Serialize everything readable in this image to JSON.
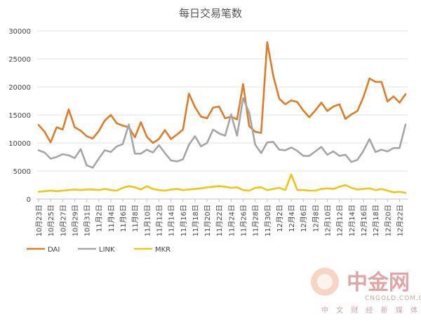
{
  "chart_data": {
    "type": "line",
    "title": "每日交易笔数",
    "xlabel": "",
    "ylabel": "",
    "ylim": [
      0,
      30000
    ],
    "y_ticks": [
      "0",
      "5000",
      "10000",
      "15000",
      "20000",
      "25000",
      "30000"
    ],
    "x_tick_labels": [
      "10月23日",
      "10月25日",
      "10月27日",
      "10月29日",
      "10月31日",
      "11月2日",
      "11月4日",
      "11月6日",
      "11月8日",
      "11月10日",
      "11月12日",
      "11月14日",
      "11月16日",
      "11月18日",
      "11月20日",
      "11月22日",
      "11月24日",
      "11月26日",
      "11月28日",
      "11月30日",
      "12月2日",
      "12月4日",
      "12月6日",
      "12月8日",
      "12月10日",
      "12月12日",
      "12月14日",
      "12月16日",
      "12月18日",
      "12月20日",
      "12月22日"
    ],
    "x": [
      "10月23日",
      "10月24日",
      "10月25日",
      "10月26日",
      "10月27日",
      "10月28日",
      "10月29日",
      "10月30日",
      "10月31日",
      "11月1日",
      "11月2日",
      "11月3日",
      "11月4日",
      "11月5日",
      "11月6日",
      "11月7日",
      "11月8日",
      "11月9日",
      "11月10日",
      "11月11日",
      "11月12日",
      "11月13日",
      "11月14日",
      "11月15日",
      "11月16日",
      "11月17日",
      "11月18日",
      "11月19日",
      "11月20日",
      "11月21日",
      "11月22日",
      "11月23日",
      "11月24日",
      "11月25日",
      "11月26日",
      "11月27日",
      "11月28日",
      "11月29日",
      "11月30日",
      "12月1日",
      "12月2日",
      "12月3日",
      "12月4日",
      "12月5日",
      "12月6日",
      "12月7日",
      "12月8日",
      "12月9日",
      "12月10日",
      "12月11日",
      "12月12日",
      "12月13日",
      "12月14日",
      "12月15日",
      "12月16日",
      "12月17日",
      "12月18日",
      "12月19日",
      "12月20日",
      "12月21日",
      "12月22日",
      "12月23日"
    ],
    "legend_position": "bottom-left",
    "grid": true,
    "series": [
      {
        "name": "DAI",
        "color": "#e07b28",
        "values": [
          13200,
          12000,
          10100,
          12800,
          12400,
          16000,
          12800,
          12200,
          11200,
          10800,
          12100,
          14000,
          15000,
          13500,
          13100,
          12800,
          11000,
          13700,
          11100,
          10000,
          10700,
          12300,
          10700,
          11500,
          12400,
          18800,
          16400,
          14700,
          14400,
          16300,
          16500,
          14400,
          14700,
          14200,
          20500,
          13000,
          12000,
          11800,
          28000,
          22000,
          17900,
          16900,
          17600,
          17300,
          15800,
          14600,
          15800,
          17200,
          15700,
          16500,
          16900,
          14300,
          15100,
          15700,
          18200,
          21500,
          20900,
          20900,
          17400,
          18300,
          17200,
          18700
        ]
      },
      {
        "name": "LINK",
        "color": "#a5a5a5",
        "values": [
          8700,
          8300,
          7200,
          7500,
          8000,
          7800,
          7300,
          8900,
          6000,
          5600,
          7200,
          8700,
          8400,
          9400,
          9800,
          13300,
          8100,
          8100,
          8800,
          8300,
          9600,
          8200,
          6900,
          6700,
          7100,
          9700,
          11200,
          9400,
          10000,
          12400,
          11700,
          11300,
          15100,
          11300,
          18000,
          15400,
          9700,
          8200,
          10100,
          10200,
          8800,
          8700,
          9200,
          8600,
          7700,
          7700,
          8500,
          9300,
          7900,
          8500,
          7700,
          7900,
          6600,
          7000,
          8600,
          10700,
          8400,
          8800,
          8500,
          9100,
          9100,
          13300
        ]
      },
      {
        "name": "MKR",
        "color": "#f2c318",
        "values": [
          1300,
          1400,
          1500,
          1400,
          1500,
          1600,
          1700,
          1600,
          1700,
          1700,
          1600,
          1800,
          1600,
          1500,
          2000,
          2300,
          2100,
          1700,
          2300,
          1800,
          1600,
          1500,
          1700,
          1800,
          1600,
          1700,
          1800,
          1900,
          2100,
          2200,
          2300,
          2200,
          2000,
          2100,
          1600,
          1500,
          2000,
          2100,
          1600,
          1800,
          2000,
          1600,
          4400,
          1600,
          1600,
          1500,
          1500,
          1800,
          1900,
          1800,
          2200,
          2500,
          2000,
          1700,
          1800,
          1900,
          1600,
          1800,
          1500,
          1200,
          1300,
          1100
        ]
      }
    ]
  },
  "watermark": {
    "brand": "中金网",
    "domain": "CNGOLD.COM.CN",
    "tagline": "中 文 财 经 新 媒 体"
  }
}
